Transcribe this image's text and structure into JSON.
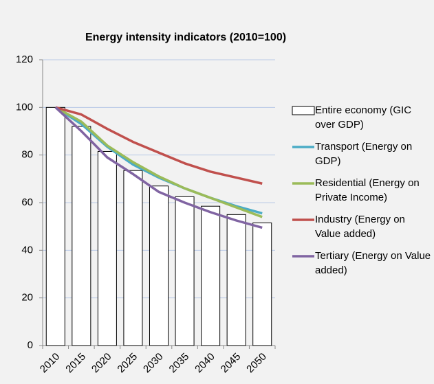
{
  "chart_data": {
    "type": "bar",
    "title": "Energy intensity indicators (2010=100)",
    "categories": [
      "2010",
      "2015",
      "2020",
      "2025",
      "2030",
      "2035",
      "2040",
      "2045",
      "2050"
    ],
    "series": [
      {
        "name": "Entire economy (GIC over GDP)",
        "type": "bar",
        "color": "#ffffff",
        "values": [
          100,
          92,
          81.5,
          73.5,
          67,
          62.5,
          58.5,
          55,
          51.5
        ]
      },
      {
        "name": "Transport (Energy on GDP)",
        "type": "line",
        "color": "#4bacc6",
        "values": [
          100,
          93,
          83.5,
          76,
          70.5,
          66,
          62,
          58.5,
          55.5
        ]
      },
      {
        "name": "Residential (Energy on Private Income)",
        "type": "line",
        "color": "#9bbb59",
        "values": [
          100,
          94,
          84,
          77,
          71,
          66,
          62,
          58,
          54
        ]
      },
      {
        "name": "Industry (Energy on Value added)",
        "type": "line",
        "color": "#c0504d",
        "values": [
          100,
          97,
          91,
          85.5,
          81,
          76.5,
          73,
          70.5,
          68
        ]
      },
      {
        "name": "Tertiary (Energy on Value added)",
        "type": "line",
        "color": "#8064a2",
        "values": [
          100,
          90,
          79,
          72,
          64.5,
          60,
          56,
          52.5,
          49.5
        ]
      }
    ],
    "ylim": [
      0,
      120
    ],
    "yticks": [
      0,
      20,
      40,
      60,
      80,
      100,
      120
    ],
    "grid": true,
    "legend": "right"
  }
}
